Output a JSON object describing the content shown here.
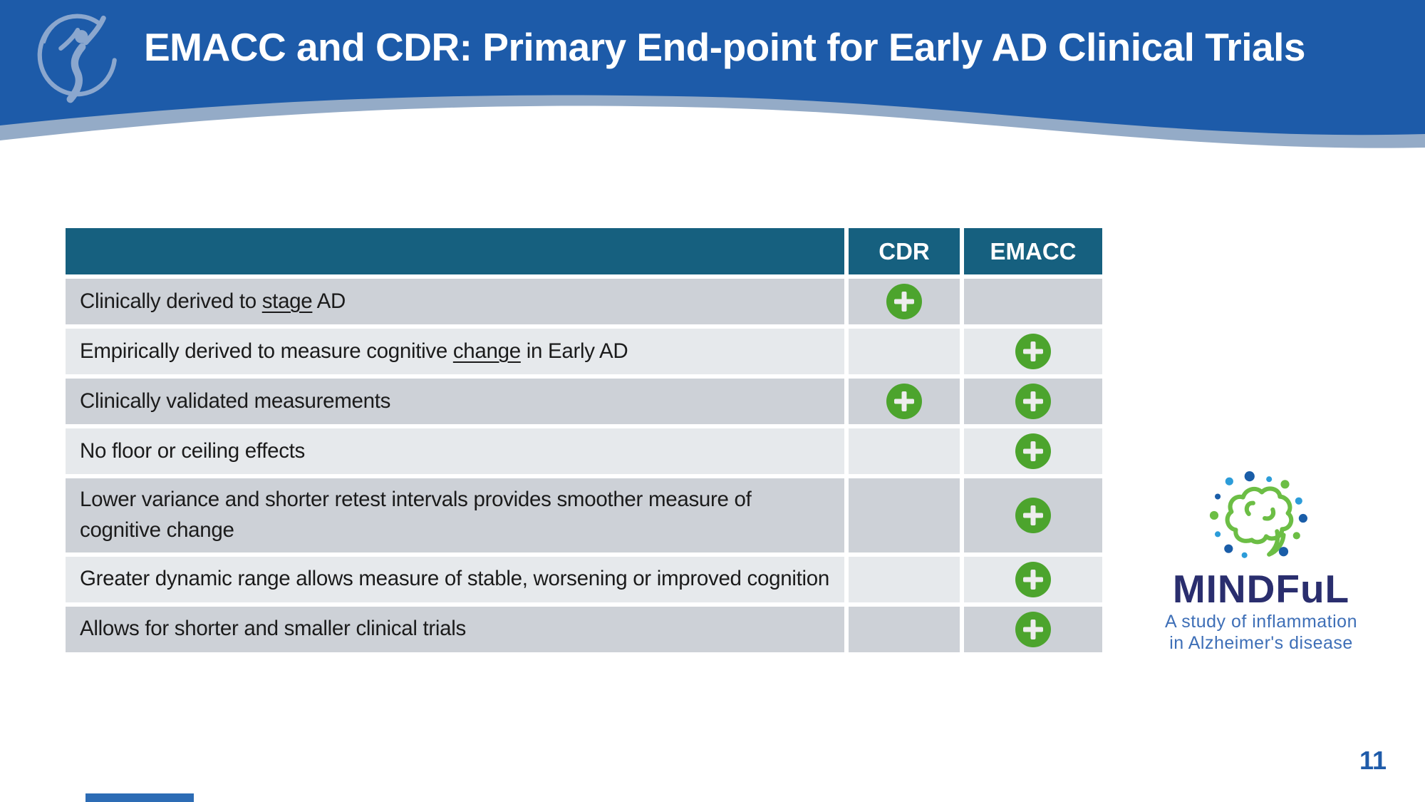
{
  "slide": {
    "title": "EMACC and CDR: Primary End-point for Early AD Clinical Trials",
    "page_number": "11"
  },
  "banner": {
    "bg_color": "#1D5BA9",
    "wave_color": "#94ABC7"
  },
  "table": {
    "header": {
      "feature": "",
      "cdr": "CDR",
      "emacc": "EMACC"
    },
    "header_bg": "#16607F",
    "row_dark": "#CDD1D7",
    "row_light": "#E6E9EC",
    "plus_color": "#4CA42D",
    "rows": [
      {
        "pre": "Clinically derived to ",
        "u": "stage",
        "post": " AD",
        "cdr": true,
        "emacc": false
      },
      {
        "pre": "Empirically derived to measure cognitive ",
        "u": "change",
        "post": " in Early AD",
        "cdr": false,
        "emacc": true
      },
      {
        "pre": "Clinically validated measurements",
        "u": "",
        "post": "",
        "cdr": true,
        "emacc": true
      },
      {
        "pre": "No floor or ceiling effects",
        "u": "",
        "post": "",
        "cdr": false,
        "emacc": true
      },
      {
        "pre": "Lower variance and shorter retest intervals provides smoother measure of cognitive change",
        "u": "",
        "post": "",
        "cdr": false,
        "emacc": true
      },
      {
        "pre": "Greater dynamic range allows measure of stable, worsening or improved cognition",
        "u": "",
        "post": "",
        "cdr": false,
        "emacc": true
      },
      {
        "pre": "Allows for shorter and smaller clinical trials",
        "u": "",
        "post": "",
        "cdr": false,
        "emacc": true
      }
    ]
  },
  "mindful": {
    "brand": "MINDFuL",
    "tagline1": "A study of inflammation",
    "tagline2": "in Alzheimer's disease",
    "navy": "#2A2E6E",
    "blue": "#3E6FB7",
    "green": "#6CBE45"
  }
}
